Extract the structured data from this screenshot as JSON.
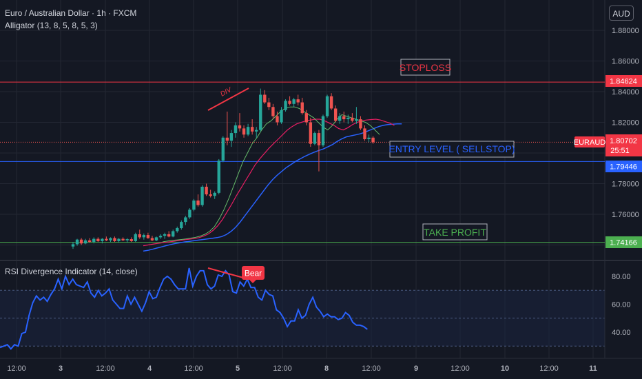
{
  "header": {
    "symbol_title": "Euro / Australian Dollar · 1h · FXCM",
    "indicator_label": "Alligator (13, 8, 5, 8, 5, 3)",
    "currency_button": "AUD"
  },
  "rsi_panel": {
    "title": "RSI Divergence Indicator (14, close)",
    "bear_label": "Bear",
    "y_ticks": [
      "80.00",
      "60.00",
      "40.00"
    ]
  },
  "annotations": {
    "stoploss": "STOPLOSS",
    "entry": "ENTRY LEVEL ( SELLSTOP)",
    "take_profit": "TAKE PROFIT",
    "div_text": "DIV"
  },
  "price_axis": {
    "ticks": [
      "1.88000",
      "1.86000",
      "1.84000",
      "1.82000",
      "1.80000",
      "1.78000",
      "1.76000"
    ],
    "stoploss_tag": "1.84624",
    "symbol_tag": "EURAUD",
    "current_price_tag": "1.80702",
    "countdown_tag": "25:51",
    "entry_tag": "1.79446",
    "take_profit_tag": "1.74166"
  },
  "time_axis": {
    "ticks": [
      "12:00",
      "3",
      "12:00",
      "4",
      "12:00",
      "5",
      "12:00",
      "8",
      "12:00",
      "9",
      "12:00",
      "10",
      "12:00",
      "11"
    ]
  },
  "colors": {
    "background": "#141823",
    "grid": "#232733",
    "up_candle": "#26a69a",
    "down_candle": "#ef5350",
    "stoploss": "#f23645",
    "entry": "#2962ff",
    "take_profit": "#4caf50",
    "jaw": "#2962ff",
    "teeth": "#e91e63",
    "lips": "#66bb6a",
    "rsi": "#2962ff"
  },
  "chart_data": {
    "type": "candlestick",
    "ylim": [
      1.735,
      1.885
    ],
    "levels": {
      "stoploss": 1.84624,
      "entry": 1.79446,
      "take_profit": 1.74166,
      "current": 1.80702
    },
    "ohlc": [
      [
        1.739,
        1.742,
        1.7375,
        1.7405
      ],
      [
        1.7405,
        1.744,
        1.7395,
        1.7435
      ],
      [
        1.7435,
        1.7445,
        1.74,
        1.741
      ],
      [
        1.741,
        1.744,
        1.7405,
        1.743
      ],
      [
        1.743,
        1.7445,
        1.7415,
        1.742
      ],
      [
        1.742,
        1.745,
        1.741,
        1.744
      ],
      [
        1.744,
        1.745,
        1.742,
        1.7425
      ],
      [
        1.7425,
        1.7445,
        1.741,
        1.744
      ],
      [
        1.744,
        1.7455,
        1.7425,
        1.743
      ],
      [
        1.743,
        1.745,
        1.742,
        1.7445
      ],
      [
        1.7445,
        1.7455,
        1.742,
        1.7425
      ],
      [
        1.7425,
        1.7445,
        1.7415,
        1.744
      ],
      [
        1.744,
        1.745,
        1.7425,
        1.743
      ],
      [
        1.743,
        1.7445,
        1.7415,
        1.7438
      ],
      [
        1.7438,
        1.745,
        1.742,
        1.7425
      ],
      [
        1.7425,
        1.748,
        1.742,
        1.747
      ],
      [
        1.747,
        1.75,
        1.744,
        1.745
      ],
      [
        1.745,
        1.7475,
        1.7435,
        1.7465
      ],
      [
        1.7465,
        1.748,
        1.744,
        1.7445
      ],
      [
        1.7445,
        1.746,
        1.7425,
        1.743
      ],
      [
        1.743,
        1.7455,
        1.7425,
        1.745
      ],
      [
        1.745,
        1.747,
        1.744,
        1.746
      ],
      [
        1.746,
        1.748,
        1.744,
        1.747
      ],
      [
        1.747,
        1.749,
        1.745,
        1.7455
      ],
      [
        1.7455,
        1.75,
        1.745,
        1.749
      ],
      [
        1.749,
        1.752,
        1.748,
        1.751
      ],
      [
        1.751,
        1.756,
        1.75,
        1.755
      ],
      [
        1.755,
        1.759,
        1.753,
        1.758
      ],
      [
        1.758,
        1.764,
        1.757,
        1.763
      ],
      [
        1.763,
        1.77,
        1.762,
        1.769
      ],
      [
        1.769,
        1.773,
        1.765,
        1.766
      ],
      [
        1.766,
        1.779,
        1.765,
        1.778
      ],
      [
        1.778,
        1.78,
        1.772,
        1.773
      ],
      [
        1.773,
        1.776,
        1.771,
        1.772
      ],
      [
        1.772,
        1.775,
        1.77,
        1.774
      ],
      [
        1.774,
        1.796,
        1.773,
        1.795
      ],
      [
        1.795,
        1.811,
        1.794,
        1.81
      ],
      [
        1.81,
        1.827,
        1.805,
        1.808
      ],
      [
        1.808,
        1.815,
        1.804,
        1.813
      ],
      [
        1.813,
        1.82,
        1.81,
        1.818
      ],
      [
        1.818,
        1.826,
        1.814,
        1.816
      ],
      [
        1.816,
        1.818,
        1.81,
        1.812
      ],
      [
        1.812,
        1.819,
        1.811,
        1.817
      ],
      [
        1.817,
        1.822,
        1.812,
        1.814
      ],
      [
        1.814,
        1.817,
        1.81,
        1.815
      ],
      [
        1.815,
        1.842,
        1.814,
        1.838
      ],
      [
        1.838,
        1.841,
        1.832,
        1.833
      ],
      [
        1.833,
        1.836,
        1.828,
        1.83
      ],
      [
        1.83,
        1.832,
        1.822,
        1.824
      ],
      [
        1.824,
        1.827,
        1.818,
        1.82
      ],
      [
        1.82,
        1.83,
        1.819,
        1.828
      ],
      [
        1.828,
        1.835,
        1.827,
        1.834
      ],
      [
        1.834,
        1.837,
        1.831,
        1.832
      ],
      [
        1.832,
        1.836,
        1.83,
        1.835
      ],
      [
        1.835,
        1.838,
        1.831,
        1.833
      ],
      [
        1.833,
        1.836,
        1.825,
        1.826
      ],
      [
        1.826,
        1.828,
        1.818,
        1.82
      ],
      [
        1.82,
        1.823,
        1.804,
        1.806
      ],
      [
        1.806,
        1.814,
        1.805,
        1.813
      ],
      [
        1.813,
        1.815,
        1.788,
        1.805
      ],
      [
        1.805,
        1.825,
        1.804,
        1.824
      ],
      [
        1.824,
        1.838,
        1.823,
        1.837
      ],
      [
        1.837,
        1.839,
        1.828,
        1.829
      ],
      [
        1.829,
        1.831,
        1.82,
        1.821
      ],
      [
        1.821,
        1.826,
        1.819,
        1.824
      ],
      [
        1.824,
        1.827,
        1.82,
        1.822
      ],
      [
        1.822,
        1.825,
        1.819,
        1.823
      ],
      [
        1.823,
        1.826,
        1.82,
        1.821
      ],
      [
        1.821,
        1.83,
        1.819,
        1.822
      ],
      [
        1.822,
        1.824,
        1.815,
        1.816
      ],
      [
        1.816,
        1.818,
        1.808,
        1.809
      ],
      [
        1.809,
        1.812,
        1.807,
        1.81
      ],
      [
        1.81,
        1.811,
        1.806,
        1.807
      ]
    ],
    "alligator": {
      "jaw": [
        1.736,
        1.7365,
        1.7372,
        1.738,
        1.7388,
        1.7396,
        1.7403,
        1.741,
        1.7415,
        1.742,
        1.7424,
        1.7428,
        1.7432,
        1.7436,
        1.744,
        1.7444,
        1.7448,
        1.7455,
        1.7468,
        1.7488,
        1.7515,
        1.755,
        1.759,
        1.763,
        1.767,
        1.771,
        1.775,
        1.779,
        1.7825,
        1.7855,
        1.788,
        1.7905,
        1.7925,
        1.7945,
        1.7962,
        1.7978,
        1.7992,
        1.8005,
        1.8016,
        1.8026,
        1.804,
        1.8055,
        1.8075,
        1.8092,
        1.8105,
        1.8112,
        1.8118,
        1.8125,
        1.8135,
        1.8148,
        1.816,
        1.8172,
        1.818,
        1.8185,
        1.8188,
        1.819,
        1.819
      ],
      "teeth": [
        1.7395,
        1.74,
        1.7405,
        1.741,
        1.7414,
        1.7418,
        1.7422,
        1.7426,
        1.743,
        1.7434,
        1.7438,
        1.7442,
        1.7448,
        1.7458,
        1.7472,
        1.7495,
        1.7525,
        1.7565,
        1.7615,
        1.7665,
        1.772,
        1.777,
        1.782,
        1.787,
        1.792,
        1.796,
        1.7995,
        1.803,
        1.806,
        1.809,
        1.812,
        1.815,
        1.8172,
        1.819,
        1.82,
        1.821,
        1.8215,
        1.822,
        1.822,
        1.821,
        1.8195,
        1.818,
        1.816,
        1.815,
        1.8165,
        1.8185,
        1.82,
        1.821,
        1.8215,
        1.8218,
        1.822,
        1.8215,
        1.8205,
        1.8195,
        1.818
      ],
      "lips": [
        1.742,
        1.7425,
        1.743,
        1.7433,
        1.7436,
        1.744,
        1.7445,
        1.745,
        1.7458,
        1.747,
        1.749,
        1.752,
        1.757,
        1.763,
        1.77,
        1.778,
        1.786,
        1.794,
        1.8,
        1.806,
        1.81,
        1.815,
        1.819,
        1.821,
        1.824,
        1.827,
        1.829,
        1.83,
        1.83,
        1.829,
        1.827,
        1.825,
        1.823,
        1.82,
        1.817,
        1.815,
        1.818,
        1.822,
        1.825,
        1.824,
        1.823,
        1.822,
        1.821,
        1.82,
        1.818,
        1.815,
        1.812
      ]
    },
    "rsi": {
      "ylim": [
        25,
        90
      ],
      "levels": [
        70,
        50,
        30
      ],
      "values": [
        29,
        30,
        31,
        28,
        31,
        30,
        39,
        40,
        52,
        61,
        66,
        63,
        65,
        62,
        67,
        71,
        78,
        71,
        80,
        74,
        78,
        74,
        73,
        72,
        76,
        68,
        65,
        70,
        66,
        68,
        71,
        63,
        60,
        57,
        57,
        66,
        60,
        65,
        60,
        55,
        61,
        69,
        64,
        65,
        72,
        78,
        80,
        78,
        74,
        71,
        71,
        71,
        86,
        73,
        80,
        84,
        84,
        74,
        71,
        73,
        81,
        80,
        84,
        81,
        69,
        68,
        76,
        73,
        78,
        72,
        72,
        65,
        63,
        70,
        67,
        66,
        56,
        54,
        50,
        44,
        48,
        48,
        56,
        50,
        52,
        60,
        65,
        58,
        55,
        51,
        53,
        51,
        51,
        49,
        50,
        54,
        52,
        47,
        45,
        45,
        44,
        42
      ]
    },
    "x_ticks": [
      "12:00",
      "3",
      "12:00",
      "4",
      "12:00",
      "5",
      "12:00",
      "8",
      "12:00",
      "9",
      "12:00",
      "10",
      "12:00",
      "11"
    ]
  }
}
